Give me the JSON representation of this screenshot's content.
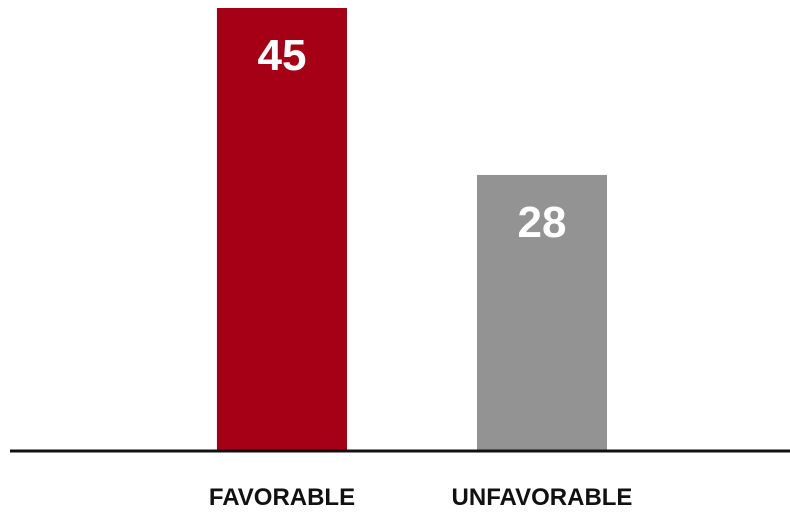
{
  "chart_data": {
    "type": "bar",
    "categories": [
      "FAVORABLE",
      "UNFAVORABLE"
    ],
    "values": [
      45,
      28
    ],
    "data_labels": [
      "45",
      "28"
    ],
    "colors": [
      "#a60016",
      "#939393"
    ],
    "axis_color": "#111111",
    "grid": false,
    "ylim": [
      0,
      45
    ]
  }
}
